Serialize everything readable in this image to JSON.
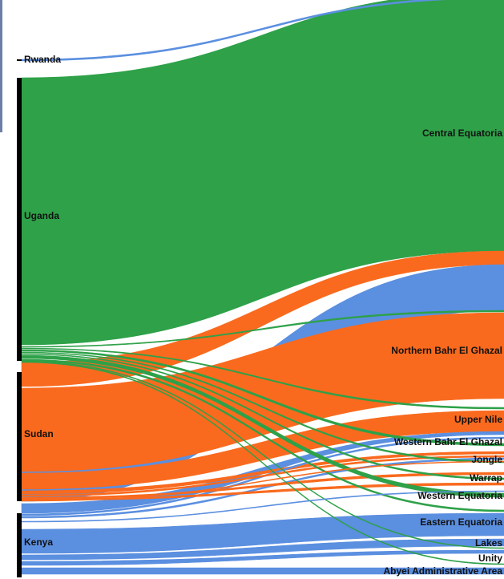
{
  "colors": {
    "uganda": "#2ea149",
    "sudan": "#f96a1e",
    "kenya": "#5b8fe0",
    "rwanda": "#5b8fe0",
    "node_bar": "#000000"
  },
  "sources": [
    {
      "id": "rwanda",
      "label": "Rwanda"
    },
    {
      "id": "uganda",
      "label": "Uganda"
    },
    {
      "id": "sudan",
      "label": "Sudan"
    },
    {
      "id": "kenya",
      "label": "Kenya"
    }
  ],
  "targets": [
    {
      "id": "central",
      "label": "Central Equatoria"
    },
    {
      "id": "nbeg",
      "label": "Northern Bahr El Ghazal"
    },
    {
      "id": "upper",
      "label": "Upper Nile"
    },
    {
      "id": "wbeg",
      "label": "Western Bahr El Ghazal"
    },
    {
      "id": "jongle",
      "label": "Jongle"
    },
    {
      "id": "warrap",
      "label": "Warrap"
    },
    {
      "id": "weq",
      "label": "Western Equatoria"
    },
    {
      "id": "eeq",
      "label": "Eastern Equatoria"
    },
    {
      "id": "lakes",
      "label": "Lakes"
    },
    {
      "id": "unity",
      "label": "Unity"
    },
    {
      "id": "abyei",
      "label": "Abyei Administrative Area"
    }
  ]
}
